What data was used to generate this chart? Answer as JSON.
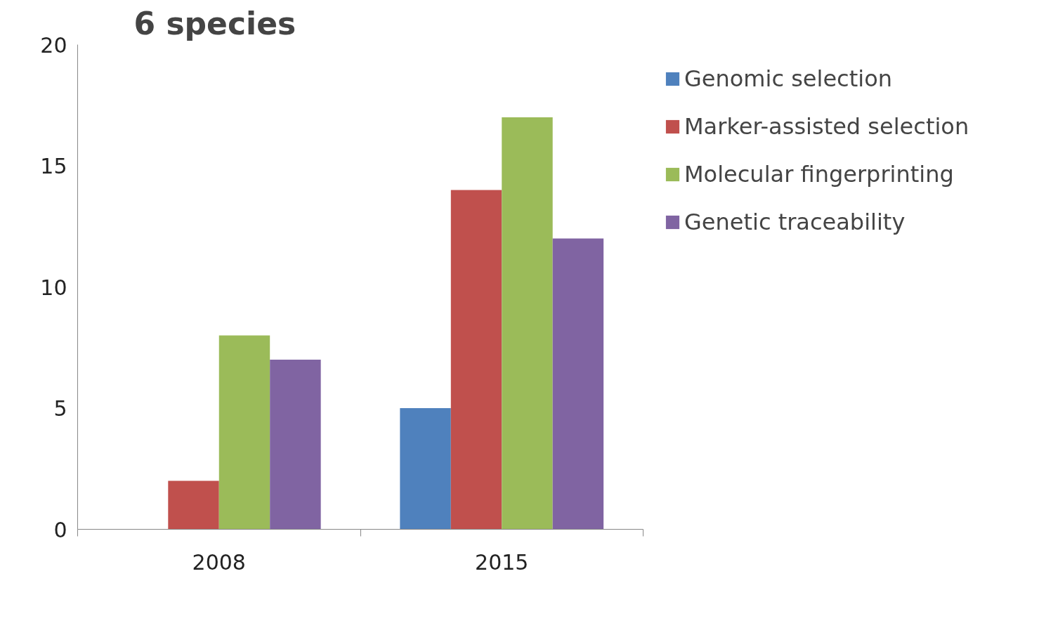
{
  "chart_data": {
    "type": "bar",
    "title": "6 species",
    "categories": [
      "2008",
      "2015"
    ],
    "series": [
      {
        "name": "Genomic selection",
        "color": "#4f81bd",
        "values": [
          0,
          5
        ]
      },
      {
        "name": "Marker-assisted selection",
        "color": "#c0504d",
        "values": [
          2,
          14
        ]
      },
      {
        "name": "Molecular fingerprinting",
        "color": "#9bbb59",
        "values": [
          8,
          17
        ]
      },
      {
        "name": "Genetic traceability",
        "color": "#8064a2",
        "values": [
          7,
          12
        ]
      }
    ],
    "ylim": [
      0,
      20
    ],
    "yticks": [
      0,
      5,
      10,
      15,
      20
    ],
    "grid": false,
    "legend": "top right"
  }
}
